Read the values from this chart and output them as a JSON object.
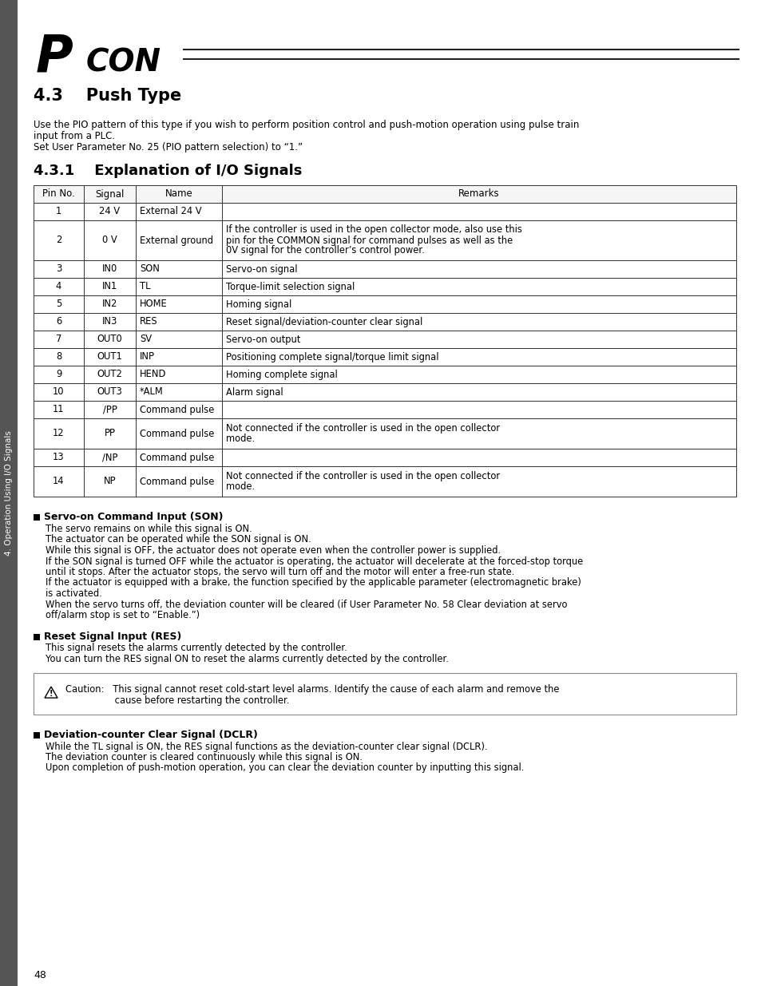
{
  "bg_color": "#ffffff",
  "page_number": "48",
  "section_title": "4.3    Push Type",
  "intro_text": "Use the PIO pattern of this type if you wish to perform position control and push-motion operation using pulse train\ninput from a PLC.\nSet User Parameter No. 25 (PIO pattern selection) to “1.”",
  "subsection_title": "4.3.1    Explanation of I/O Signals",
  "table_headers": [
    "Pin No.",
    "Signal",
    "Name",
    "Remarks"
  ],
  "table_rows": [
    [
      "1",
      "24 V",
      "External 24 V",
      ""
    ],
    [
      "2",
      "0 V",
      "External ground",
      "If the controller is used in the open collector mode, also use this\npin for the COMMON signal for command pulses as well as the\n0V signal for the controller’s control power."
    ],
    [
      "3",
      "IN0",
      "SON",
      "Servo-on signal"
    ],
    [
      "4",
      "IN1",
      "TL",
      "Torque-limit selection signal"
    ],
    [
      "5",
      "IN2",
      "HOME",
      "Homing signal"
    ],
    [
      "6",
      "IN3",
      "RES",
      "Reset signal/deviation-counter clear signal"
    ],
    [
      "7",
      "OUT0",
      "SV",
      "Servo-on output"
    ],
    [
      "8",
      "OUT1",
      "INP",
      "Positioning complete signal/torque limit signal"
    ],
    [
      "9",
      "OUT2",
      "HEND",
      "Homing complete signal"
    ],
    [
      "10",
      "OUT3",
      "*ALM",
      "Alarm signal"
    ],
    [
      "11",
      "/PP",
      "Command pulse",
      ""
    ],
    [
      "12",
      "PP",
      "Command pulse",
      "Not connected if the controller is used in the open collector\nmode."
    ],
    [
      "13",
      "/NP",
      "Command pulse",
      ""
    ],
    [
      "14",
      "NP",
      "Command pulse",
      "Not connected if the controller is used in the open collector\nmode."
    ]
  ],
  "bullet_sections": [
    {
      "title": "Servo-on Command Input (SON)",
      "lines": [
        "The servo remains on while this signal is ON.",
        "The actuator can be operated while the SON signal is ON.",
        "While this signal is OFF, the actuator does not operate even when the controller power is supplied.",
        "If the SON signal is turned OFF while the actuator is operating, the actuator will decelerate at the forced-stop torque",
        "until it stops. After the actuator stops, the servo will turn off and the motor will enter a free-run state.",
        "If the actuator is equipped with a brake, the function specified by the applicable parameter (electromagnetic brake)",
        "is activated.",
        "When the servo turns off, the deviation counter will be cleared (if User Parameter No. 58 Clear deviation at servo",
        "off/alarm stop is set to “Enable.”)"
      ]
    },
    {
      "title": "Reset Signal Input (RES)",
      "lines": [
        "This signal resets the alarms currently detected by the controller.",
        "You can turn the RES signal ON to reset the alarms currently detected by the controller."
      ]
    }
  ],
  "caution_line1": "Caution:   This signal cannot reset cold-start level alarms. Identify the cause of each alarm and remove the",
  "caution_line2": "                 cause before restarting the controller.",
  "final_bullet": {
    "title": "Deviation-counter Clear Signal (DCLR)",
    "lines": [
      "While the TL signal is ON, the RES signal functions as the deviation-counter clear signal (DCLR).",
      "The deviation counter is cleared continuously while this signal is ON.",
      "Upon completion of push-motion operation, you can clear the deviation counter by inputting this signal."
    ]
  },
  "sidebar_text": "4. Operation Using I/O Signals",
  "sidebar_bg": "#555555"
}
